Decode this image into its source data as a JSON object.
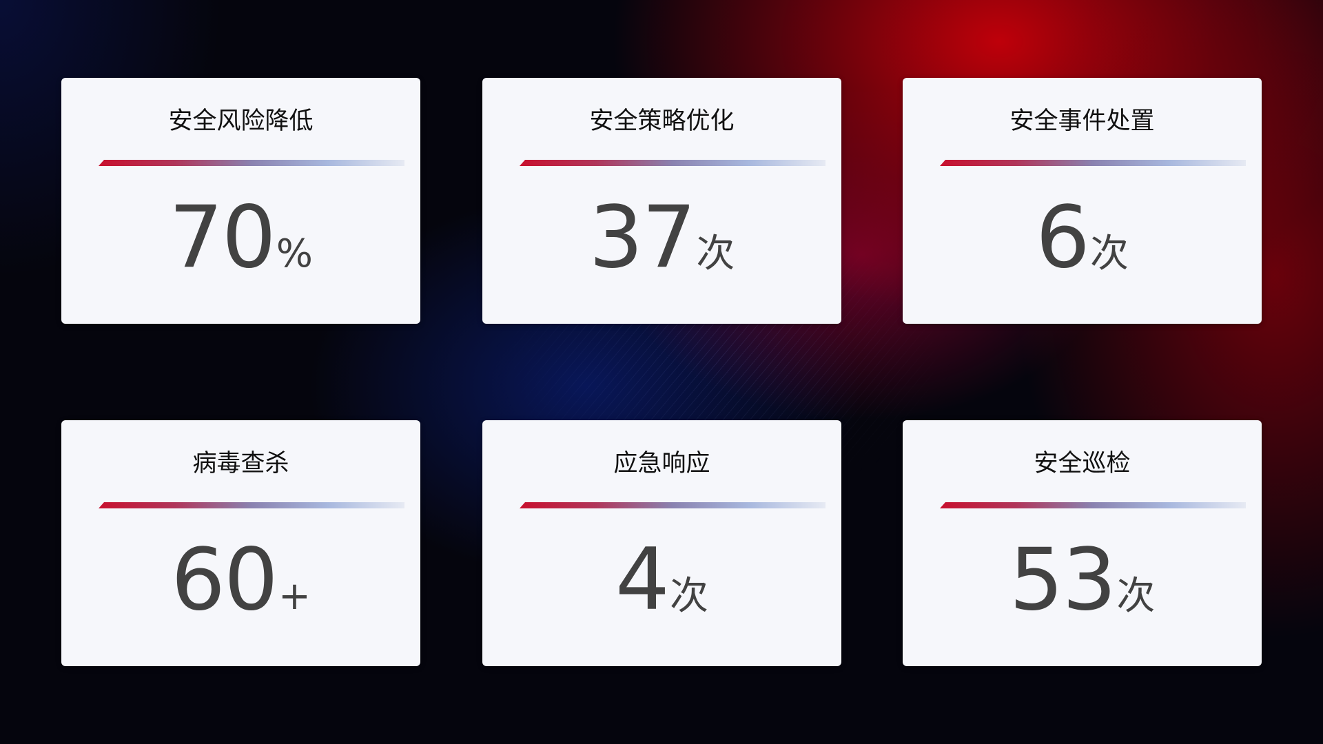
{
  "cards": [
    {
      "title": "安全风险降低",
      "value": "70",
      "unit": "%"
    },
    {
      "title": "安全策略优化",
      "value": "37",
      "unit": "次"
    },
    {
      "title": "安全事件处置",
      "value": "6",
      "unit": "次"
    },
    {
      "title": "病毒查杀",
      "value": "60",
      "unit": "+"
    },
    {
      "title": "应急响应",
      "value": "4",
      "unit": "次"
    },
    {
      "title": "安全巡检",
      "value": "53",
      "unit": "次"
    }
  ],
  "colors": {
    "accent_red": "#c8102e",
    "accent_blue": "#8a9ccc",
    "card_bg": "#f6f7fb",
    "number": "#424242"
  }
}
